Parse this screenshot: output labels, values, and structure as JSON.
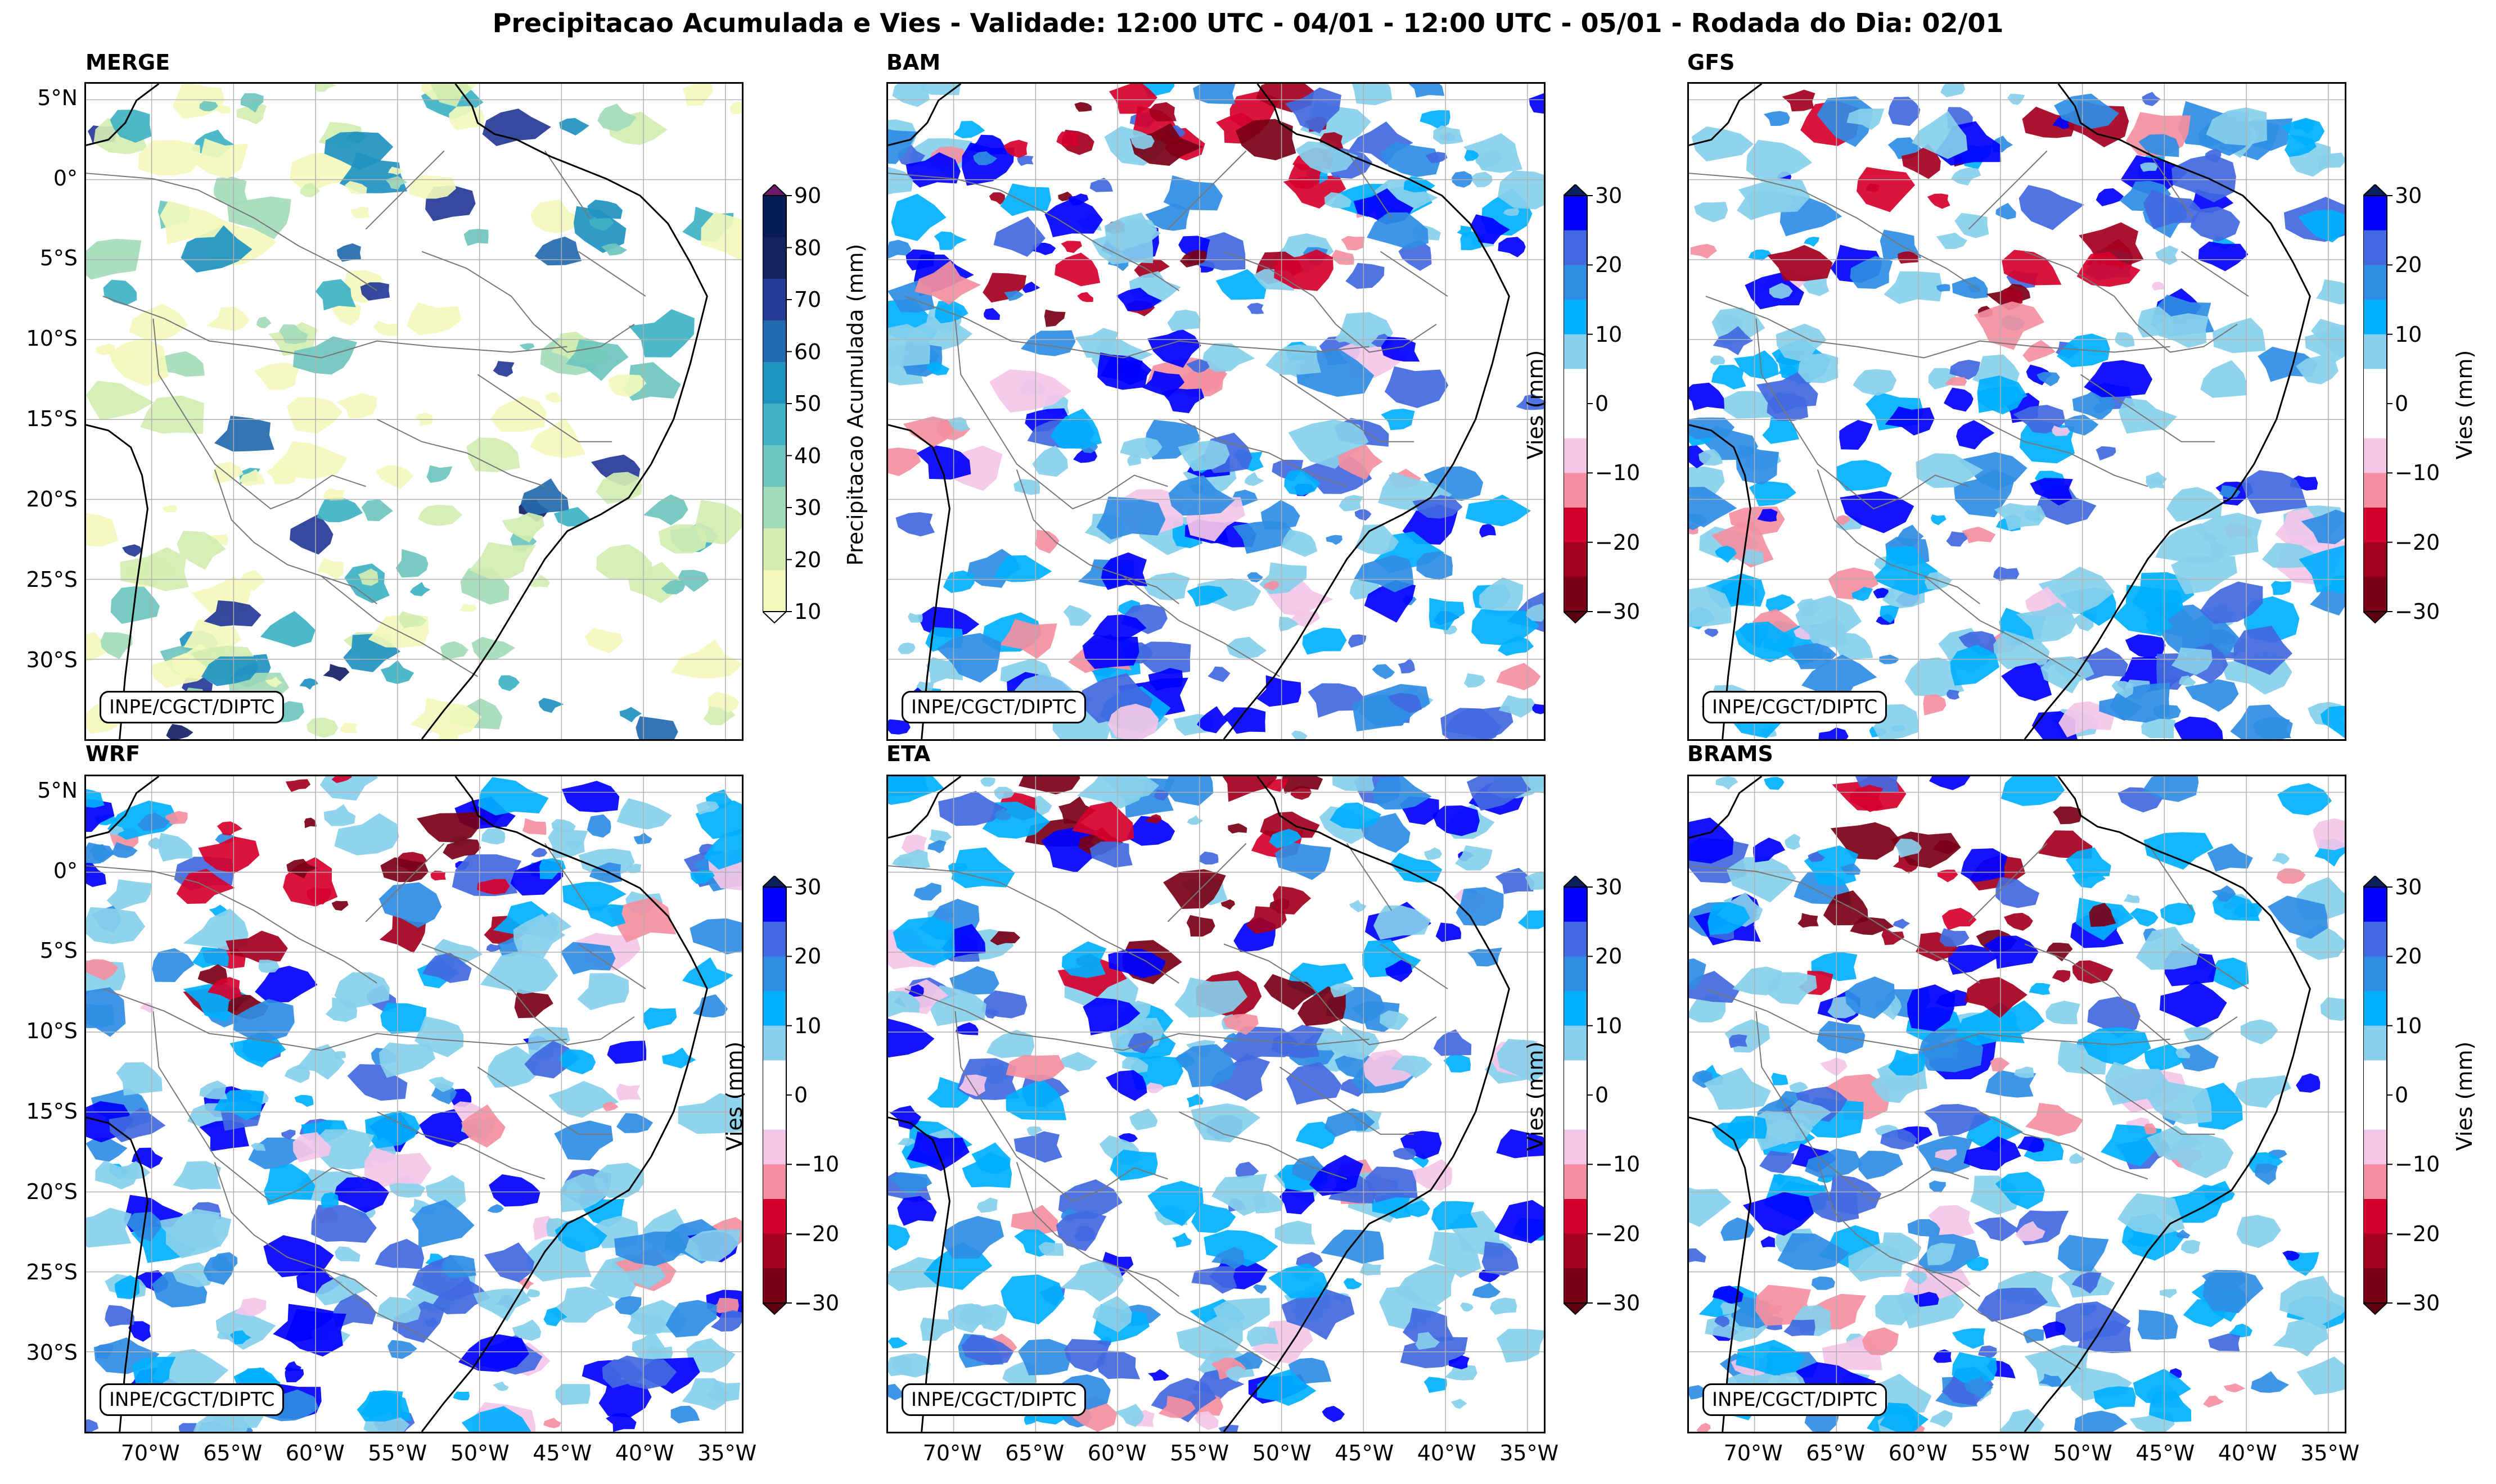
{
  "figure": {
    "title": "Precipitacao Acumulada e Vies - Validade: 12:00 UTC - 04/01 - 12:00 UTC - 05/01 - Rodada do Dia: 02/01",
    "credit": "INPE/CGCT/DIPTC",
    "lat_labels": [
      "5°N",
      "0°",
      "5°S",
      "10°S",
      "15°S",
      "20°S",
      "25°S",
      "30°S"
    ],
    "lon_labels": [
      "70°W",
      "65°W",
      "60°W",
      "55°W",
      "50°W",
      "45°W",
      "40°W",
      "35°W"
    ]
  },
  "panels": [
    {
      "id": "merge",
      "title": "MERGE"
    },
    {
      "id": "bam",
      "title": "BAM"
    },
    {
      "id": "gfs",
      "title": "GFS"
    },
    {
      "id": "wrf",
      "title": "WRF"
    },
    {
      "id": "eta",
      "title": "ETA"
    },
    {
      "id": "brams",
      "title": "BRAMS"
    }
  ],
  "colorbars": {
    "precip": {
      "label": "Precipitacao Acumulada (mm)",
      "ticks": [
        "90",
        "80",
        "70",
        "60",
        "50",
        "40",
        "30",
        "20",
        "10"
      ],
      "colors": [
        "#f2f9bb",
        "#d2edb1",
        "#a3dbb8",
        "#6cc5be",
        "#3eb2c3",
        "#1f93c0",
        "#2369ad",
        "#253997",
        "#142264",
        "#081d58"
      ],
      "over": "#6a1b6a"
    },
    "bias": {
      "label": "Vies (mm)",
      "ticks": [
        "30",
        "20",
        "10",
        "0",
        "−10",
        "−20",
        "−30"
      ],
      "colors": [
        "#7a0016",
        "#a3001f",
        "#d6002c",
        "#f48fa0",
        "#f5c6e8",
        "#ffffff",
        "#ffffff",
        "#87cfeb",
        "#00b0ff",
        "#2f8de4",
        "#4169e1",
        "#0000ff"
      ],
      "under": "#5e0010",
      "over": "#0b1f5c"
    }
  }
}
